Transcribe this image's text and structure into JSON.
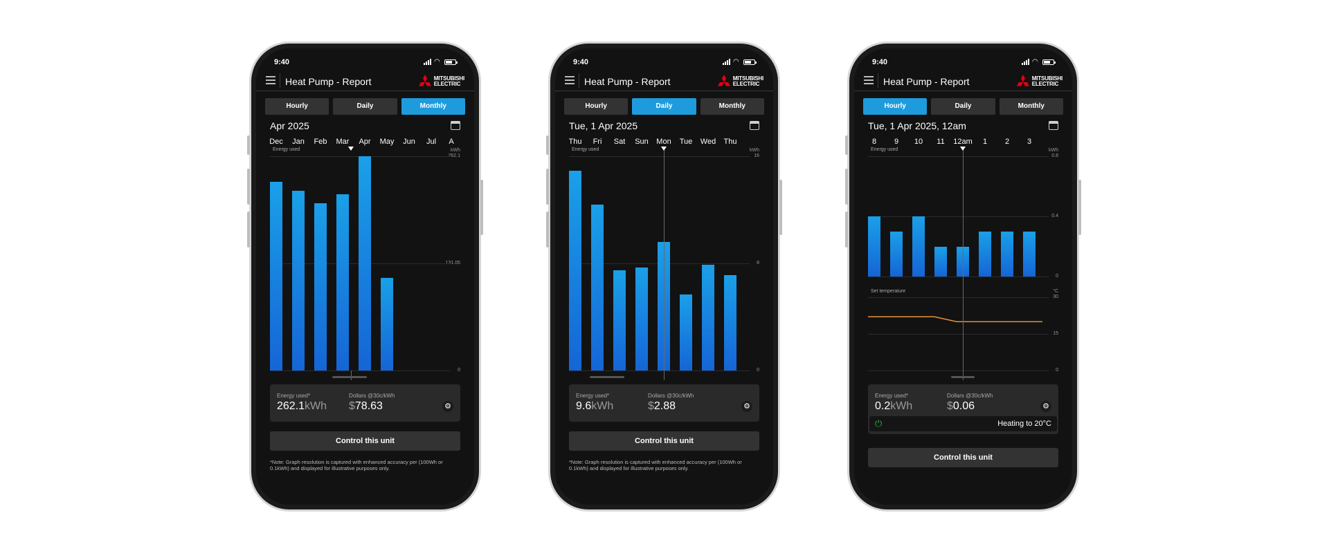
{
  "status": {
    "time": "9:40"
  },
  "app": {
    "title": "Heat Pump - Report",
    "brand_line1": "MITSUBISHI",
    "brand_line2": "ELECTRIC"
  },
  "tabs": [
    "Hourly",
    "Daily",
    "Monthly"
  ],
  "labels": {
    "energy_used_chart": "Energy used",
    "kwh_unit": "kWh",
    "energy_used_summary": "Energy used*",
    "dollars": "Dollars @30c/kWh",
    "control_button": "Control this unit",
    "note": "*Note: Graph resolution is captured with enhanced accuracy per (100Wh or 0.1kWh) and displayed for illustrative purposes only.",
    "set_temperature": "Set temperature",
    "celsius_unit": "°C"
  },
  "screens": [
    {
      "active_tab": "Monthly",
      "period": "Apr 2025",
      "ticks": [
        "Dec",
        "Jan",
        "Feb",
        "Mar",
        "Apr",
        "May",
        "Jun",
        "Jul",
        "A"
      ],
      "y_axis": [
        "262.1",
        "131.05",
        "0"
      ],
      "summary": {
        "energy_value": "262.1",
        "energy_unit": "kWh",
        "dollar_sign": "$",
        "dollar_value": "78.63"
      }
    },
    {
      "active_tab": "Daily",
      "period": "Tue, 1 Apr 2025",
      "ticks": [
        "Thu",
        "Fri",
        "Sat",
        "Sun",
        "Mon",
        "Tue",
        "Wed",
        "Thu"
      ],
      "y_axis": [
        "16",
        "8",
        "0"
      ],
      "summary": {
        "energy_value": "9.6",
        "energy_unit": "kWh",
        "dollar_sign": "$",
        "dollar_value": "2.88"
      }
    },
    {
      "active_tab": "Hourly",
      "period": "Tue, 1 Apr 2025, 12am",
      "ticks": [
        "8",
        "9",
        "10",
        "11",
        "12am",
        "1",
        "2",
        "3"
      ],
      "y_axis": [
        "0.8",
        "0.4",
        "0"
      ],
      "temp_axis": [
        "30",
        "15",
        "0"
      ],
      "summary": {
        "energy_value": "0.2",
        "energy_unit": "kWh",
        "dollar_sign": "$",
        "dollar_value": "0.06"
      },
      "unit_status": "Heating to 20°C"
    }
  ],
  "chart_data": [
    {
      "type": "bar",
      "categories": [
        "Dec",
        "Jan",
        "Feb",
        "Mar",
        "Apr",
        "May"
      ],
      "values": [
        231,
        220,
        205,
        216,
        262.1,
        113
      ],
      "ylim": [
        0,
        262.1
      ]
    },
    {
      "type": "bar",
      "categories": [
        "Thu",
        "Fri",
        "Sat",
        "Sun",
        "Mon",
        "Tue",
        "Wed",
        "Thu"
      ],
      "values": [
        14.9,
        12.4,
        7.5,
        7.7,
        9.6,
        5.7,
        7.9,
        7.1
      ],
      "ylim": [
        0,
        16
      ]
    },
    {
      "type": "bar",
      "categories": [
        "8",
        "9",
        "10",
        "11",
        "12am",
        "1",
        "2",
        "3"
      ],
      "values": [
        0.4,
        0.3,
        0.4,
        0.2,
        0.2,
        0.3,
        0.3,
        0.3
      ],
      "ylim": [
        0,
        0.8
      ],
      "set_temperature": {
        "values": [
          22,
          22,
          22,
          22,
          20,
          20,
          20,
          20
        ],
        "ylim": [
          0,
          30
        ]
      }
    }
  ]
}
